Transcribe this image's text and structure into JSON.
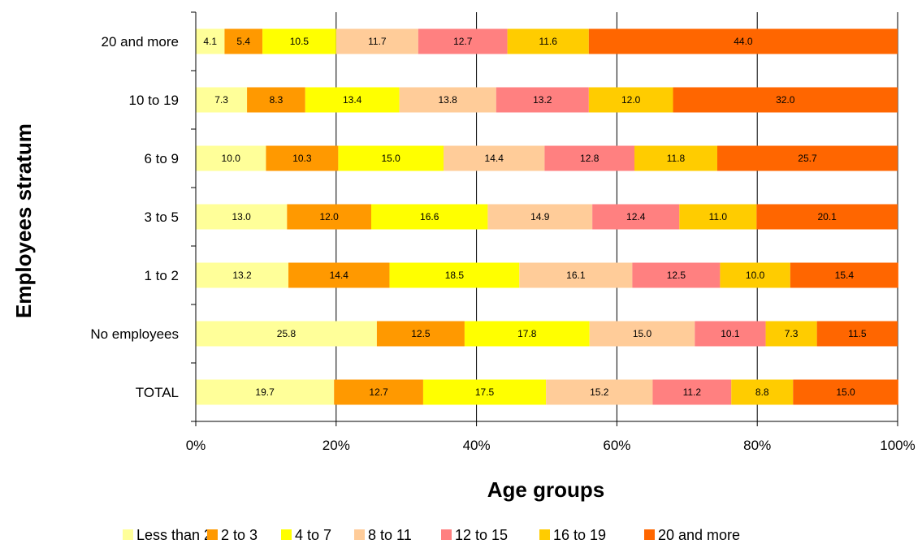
{
  "chart_data": {
    "type": "bar",
    "orientation": "horizontal",
    "stacked": true,
    "categories": [
      "20 and more",
      "10 to 19",
      "6 to 9",
      "3 to 5",
      "1 to 2",
      "No employees",
      "TOTAL"
    ],
    "series": [
      {
        "name": "Less than 2",
        "color": "#FFFF99",
        "values": [
          4.1,
          7.3,
          10.0,
          13.0,
          13.2,
          25.8,
          19.7
        ]
      },
      {
        "name": "2 to 3",
        "color": "#FF9900",
        "values": [
          5.4,
          8.3,
          10.3,
          12.0,
          14.4,
          12.5,
          12.7
        ]
      },
      {
        "name": "4 to 7",
        "color": "#FFFF00",
        "values": [
          10.5,
          13.4,
          15.0,
          16.6,
          18.5,
          17.8,
          17.5
        ]
      },
      {
        "name": "8 to 11",
        "color": "#FFCC99",
        "values": [
          11.7,
          13.8,
          14.4,
          14.9,
          16.1,
          15.0,
          15.2
        ]
      },
      {
        "name": "12 to 15",
        "color": "#FF8080",
        "values": [
          12.7,
          13.2,
          12.8,
          12.4,
          12.5,
          10.1,
          11.2
        ]
      },
      {
        "name": "16 to 19",
        "color": "#FFCC00",
        "values": [
          11.6,
          12.0,
          11.8,
          11.0,
          10.0,
          7.3,
          8.8
        ]
      },
      {
        "name": "20 and more",
        "color": "#FF6600",
        "values": [
          44.0,
          32.0,
          25.7,
          20.1,
          15.4,
          11.5,
          15.0
        ]
      }
    ],
    "x_ticks": [
      "0%",
      "20%",
      "40%",
      "60%",
      "80%",
      "100%"
    ],
    "xlim": [
      0,
      100
    ],
    "xlabel": "Age groups",
    "ylabel": "Employees stratum",
    "grid": "vertical",
    "legend_position": "bottom"
  }
}
